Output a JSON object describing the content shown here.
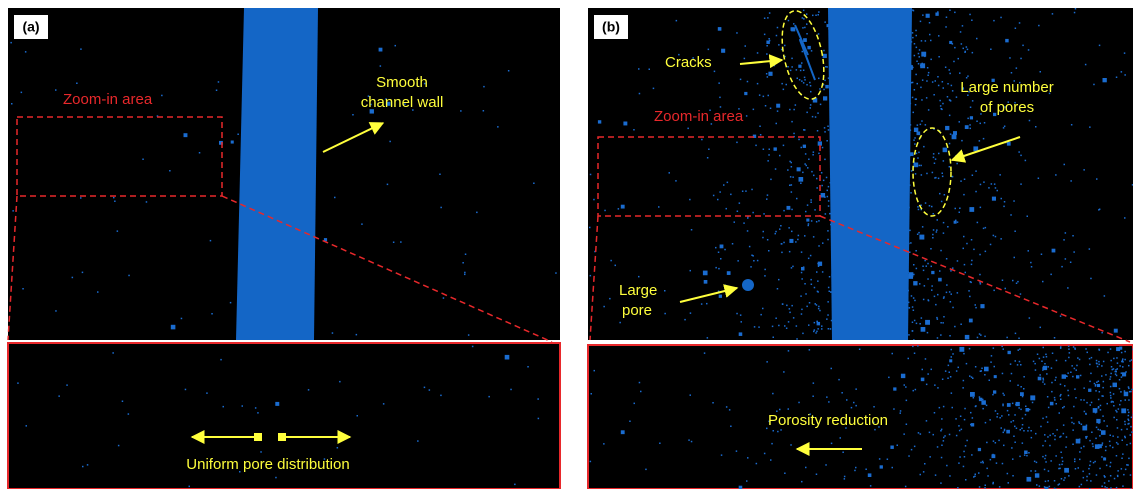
{
  "panel_a": {
    "label": "(a)",
    "zoom_label": "Zoom-in area",
    "wall_label": [
      "Smooth",
      "channel wall"
    ],
    "zoom_caption": "Uniform pore distribution"
  },
  "panel_b": {
    "label": "(b)",
    "cracks_label": "Cracks",
    "zoom_label": "Zoom-in area",
    "pores_label": [
      "Large number",
      "of pores"
    ],
    "large_pore_label": [
      "Large",
      "pore"
    ],
    "zoom_caption": "Porosity reduction"
  }
}
